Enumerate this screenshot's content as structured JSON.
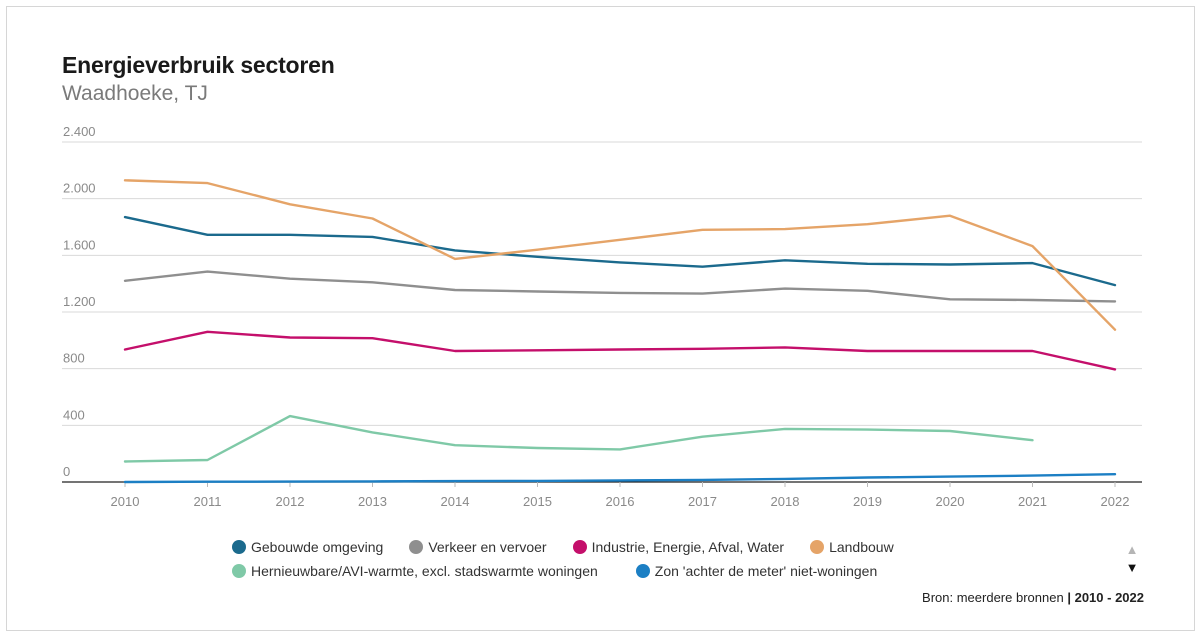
{
  "title": "Energieverbruik sectoren",
  "subtitle": "Waadhoeke, TJ",
  "source": {
    "label": "Bron: meerdere bronnen",
    "separator": "|",
    "range": "2010 - 2022"
  },
  "nav": {
    "up": "▲",
    "down": "▼"
  },
  "chart_data": {
    "type": "line",
    "title": "Energieverbruik sectoren",
    "subtitle": "Waadhoeke, TJ",
    "xlabel": "",
    "ylabel": "",
    "ylim": [
      0,
      2400
    ],
    "y_ticks": [
      0,
      400,
      800,
      1200,
      1600,
      2000,
      2400
    ],
    "y_tick_labels": [
      "0",
      "400",
      "800",
      "1.200",
      "1.600",
      "2.000",
      "2.400"
    ],
    "x": [
      "2010",
      "2011",
      "2012",
      "2013",
      "2014",
      "2015",
      "2016",
      "2017",
      "2018",
      "2019",
      "2020",
      "2021",
      "2022"
    ],
    "grid": true,
    "legend_position": "bottom",
    "series": [
      {
        "name": "Gebouwde omgeving",
        "color": "#1b6a8d",
        "values": [
          1870,
          1745,
          1745,
          1730,
          1635,
          1590,
          1550,
          1520,
          1565,
          1540,
          1535,
          1545,
          1390
        ]
      },
      {
        "name": "Verkeer en vervoer",
        "color": "#8f8f8f",
        "values": [
          1420,
          1485,
          1435,
          1410,
          1355,
          1345,
          1335,
          1330,
          1365,
          1350,
          1290,
          1285,
          1275
        ]
      },
      {
        "name": "Industrie, Energie, Afval, Water",
        "color": "#c40f6b",
        "values": [
          935,
          1060,
          1020,
          1015,
          925,
          930,
          935,
          940,
          950,
          925,
          925,
          925,
          795
        ]
      },
      {
        "name": "Landbouw",
        "color": "#e5a468",
        "values": [
          2130,
          2110,
          1960,
          1860,
          1575,
          1640,
          1710,
          1780,
          1785,
          1820,
          1880,
          1665,
          1075
        ]
      },
      {
        "name": "Hernieuwbare/AVI-warmte, excl. stadswarmte woningen",
        "color": "#7fc9a7",
        "values": [
          145,
          155,
          465,
          350,
          260,
          240,
          230,
          320,
          375,
          370,
          360,
          295,
          null
        ]
      },
      {
        "name": "Zon 'achter de meter' niet-woningen",
        "color": "#1c7fc4",
        "values": [
          0,
          2,
          3,
          4,
          6,
          8,
          11,
          15,
          22,
          32,
          38,
          45,
          55
        ]
      }
    ]
  }
}
